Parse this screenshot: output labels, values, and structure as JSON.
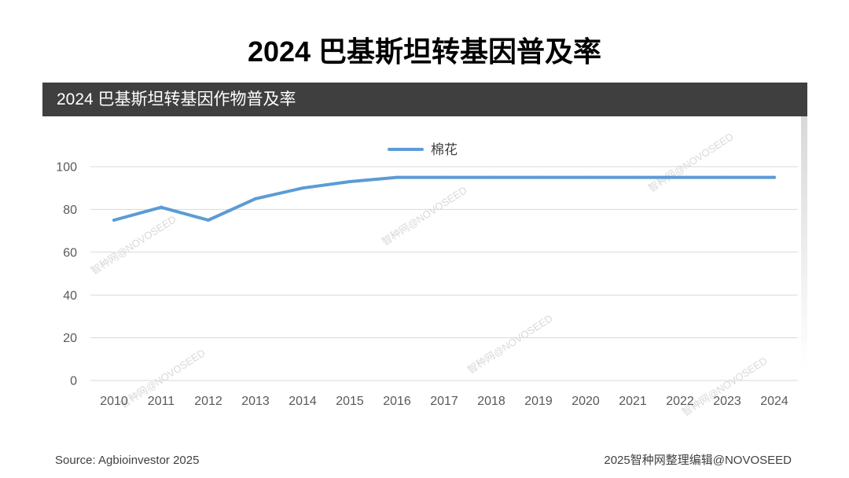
{
  "page": {
    "title": "2024 巴基斯坦转基因普及率",
    "watermark": "智种网@NOVOSEED",
    "source": "Source: Agbioinvestor 2025",
    "credit": "2025智种网整理编辑@NOVOSEED"
  },
  "colors": {
    "header_band": "#3F3F3F",
    "gridline": "#D9D9D9"
  },
  "chart_data": {
    "type": "line",
    "title": "2024 巴基斯坦转基因作物普及率",
    "x": [
      "2010",
      "2011",
      "2012",
      "2013",
      "2014",
      "2015",
      "2016",
      "2017",
      "2018",
      "2019",
      "2020",
      "2021",
      "2022",
      "2023",
      "2024"
    ],
    "series": [
      {
        "name": "棉花",
        "color": "#5B9BD5",
        "values": [
          75,
          81,
          75,
          85,
          90,
          93,
          95,
          95,
          95,
          95,
          95,
          95,
          95,
          95,
          95
        ]
      }
    ],
    "ylim": [
      0,
      100
    ],
    "yticks": [
      0,
      20,
      40,
      60,
      80,
      100
    ],
    "grid": true,
    "legend": "top"
  }
}
